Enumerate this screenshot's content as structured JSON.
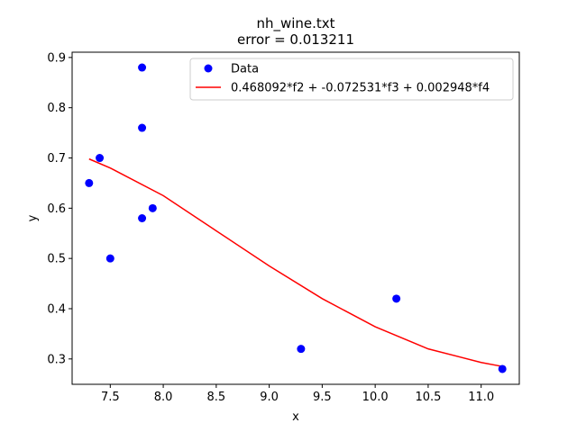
{
  "chart_data": {
    "type": "scatter",
    "title_line1": "nh_wine.txt",
    "title_line2": "error  = 0.013211",
    "xlabel": "x",
    "ylabel": "y",
    "xlim": [
      7.14,
      11.36
    ],
    "ylim": [
      0.2495,
      0.9105
    ],
    "xticks": [
      7.5,
      8.0,
      8.5,
      9.0,
      9.5,
      10.0,
      10.5,
      11.0
    ],
    "xtick_labels": [
      "7.5",
      "8.0",
      "8.5",
      "9.0",
      "9.5",
      "10.0",
      "10.5",
      "11.0"
    ],
    "yticks": [
      0.3,
      0.4,
      0.5,
      0.6,
      0.7,
      0.8,
      0.9
    ],
    "ytick_labels": [
      "0.3",
      "0.4",
      "0.5",
      "0.6",
      "0.7",
      "0.8",
      "0.9"
    ],
    "grid": false,
    "legend_position": "top-right",
    "series": [
      {
        "name": "Data",
        "kind": "scatter",
        "color": "#0000ff",
        "x": [
          7.3,
          7.4,
          7.5,
          7.8,
          7.8,
          7.8,
          7.9,
          9.3,
          10.2,
          11.2
        ],
        "y": [
          0.65,
          0.7,
          0.5,
          0.88,
          0.76,
          0.58,
          0.6,
          0.32,
          0.42,
          0.28
        ]
      },
      {
        "name": "0.468092*f2 + -0.072531*f3 + 0.002948*f4",
        "kind": "line",
        "color": "#ff0000",
        "x": [
          7.3,
          7.5,
          8.0,
          8.5,
          9.0,
          9.5,
          10.0,
          10.5,
          11.0,
          11.2
        ],
        "y": [
          0.698,
          0.68,
          0.625,
          0.555,
          0.485,
          0.42,
          0.364,
          0.32,
          0.293,
          0.285
        ]
      }
    ]
  }
}
